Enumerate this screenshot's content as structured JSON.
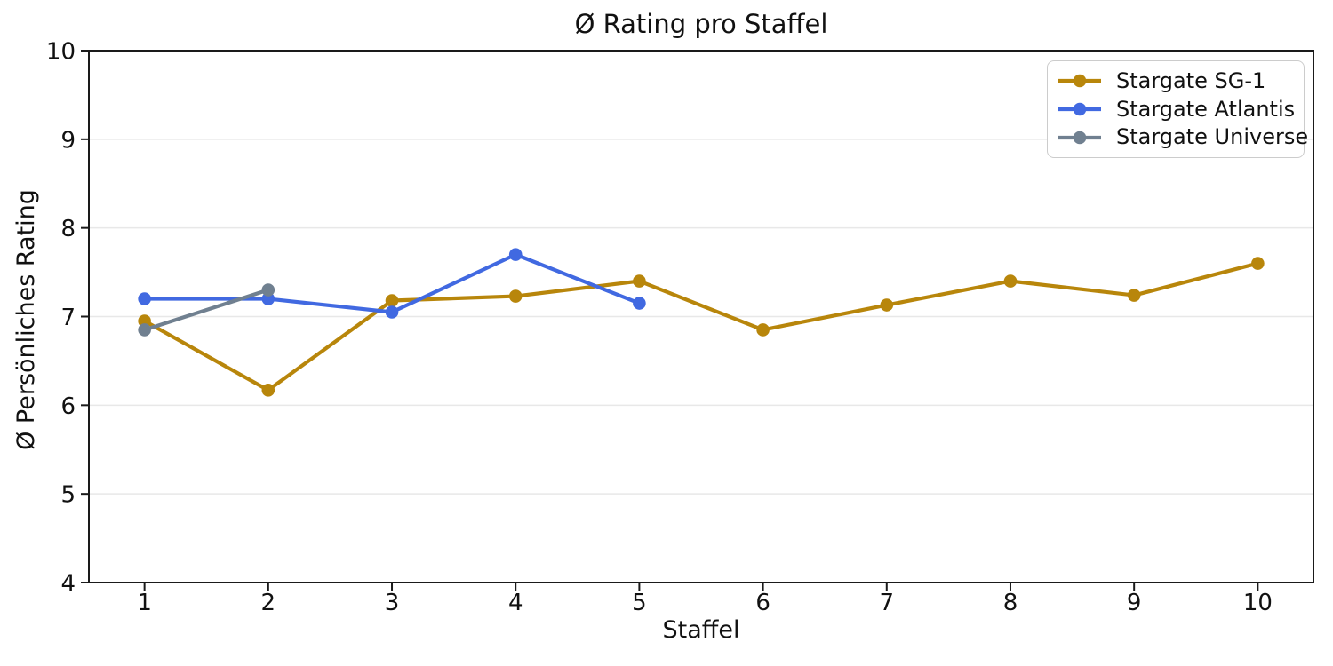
{
  "chart_data": {
    "type": "line",
    "title": "Ø Rating pro Staffel",
    "xlabel": "Staffel",
    "ylabel": "Ø Persönliches Rating",
    "xlim": [
      0.55,
      10.45
    ],
    "ylim": [
      4,
      10
    ],
    "x_ticks": [
      1,
      2,
      3,
      4,
      5,
      6,
      7,
      8,
      9,
      10
    ],
    "y_ticks": [
      4,
      5,
      6,
      7,
      8,
      9,
      10
    ],
    "grid": "horizontal",
    "grid_color": "#e8e8e8",
    "spine_color": "#1a1a1a",
    "background": "#ffffff",
    "legend_position": "upper right",
    "series": [
      {
        "name": "Stargate SG-1",
        "color": "#B8860B",
        "x": [
          1,
          2,
          3,
          4,
          5,
          6,
          7,
          8,
          9,
          10
        ],
        "y": [
          6.95,
          6.17,
          7.18,
          7.23,
          7.4,
          6.85,
          7.13,
          7.4,
          7.24,
          7.6
        ]
      },
      {
        "name": "Stargate Atlantis",
        "color": "#4169E1",
        "x": [
          1,
          2,
          3,
          4,
          5
        ],
        "y": [
          7.2,
          7.2,
          7.05,
          7.7,
          7.15
        ]
      },
      {
        "name": "Stargate Universe",
        "color": "#708090",
        "x": [
          1,
          2
        ],
        "y": [
          6.85,
          7.3
        ]
      }
    ]
  }
}
